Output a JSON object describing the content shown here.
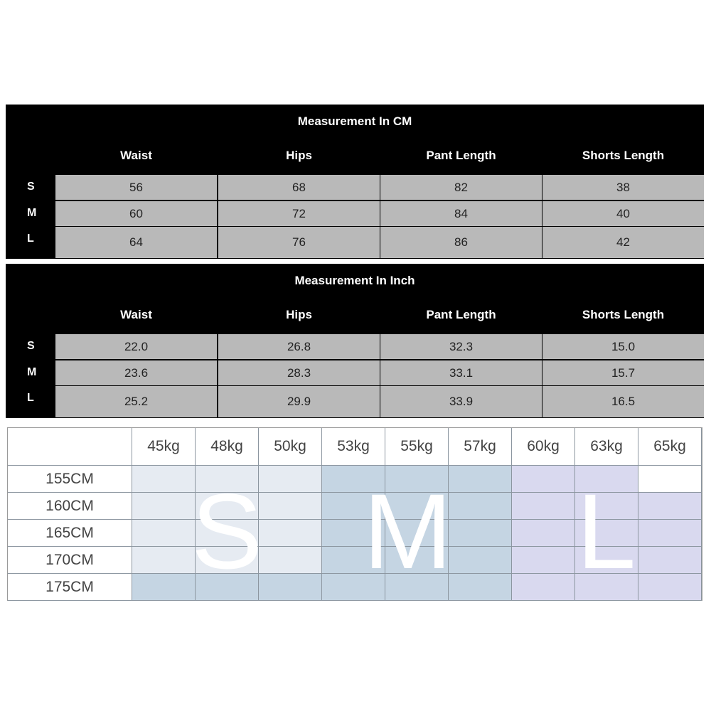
{
  "tables": [
    {
      "title": "Measurement In CM",
      "columns": [
        "Waist",
        "Hips",
        "Pant Length",
        "Shorts Length"
      ],
      "rows": [
        {
          "size": "S",
          "values": [
            "56",
            "68",
            "82",
            "38"
          ]
        },
        {
          "size": "M",
          "values": [
            "60",
            "72",
            "84",
            "40"
          ]
        },
        {
          "size": "L",
          "values": [
            "64",
            "76",
            "86",
            "42"
          ]
        }
      ]
    },
    {
      "title": "Measurement In Inch",
      "columns": [
        "Waist",
        "Hips",
        "Pant Length",
        "Shorts Length"
      ],
      "rows": [
        {
          "size": "S",
          "values": [
            "22.0",
            "26.8",
            "32.3",
            "15.0"
          ]
        },
        {
          "size": "M",
          "values": [
            "23.6",
            "28.3",
            "33.1",
            "15.7"
          ]
        },
        {
          "size": "L",
          "values": [
            "25.2",
            "29.9",
            "33.9",
            "16.5"
          ]
        }
      ]
    }
  ],
  "size_grid": {
    "weights": [
      "45kg",
      "48kg",
      "50kg",
      "53kg",
      "55kg",
      "57kg",
      "60kg",
      "63kg",
      "65kg"
    ],
    "heights": [
      "155CM",
      "160CM",
      "165CM",
      "170CM",
      "175CM"
    ],
    "cells": [
      [
        "S",
        "S",
        "S",
        "M",
        "M",
        "M",
        "L",
        "L",
        ""
      ],
      [
        "S",
        "S",
        "S",
        "M",
        "M",
        "M",
        "L",
        "L",
        "L"
      ],
      [
        "S",
        "S",
        "S",
        "M",
        "M",
        "M",
        "L",
        "L",
        "L"
      ],
      [
        "S",
        "S",
        "S",
        "M",
        "M",
        "M",
        "L",
        "L",
        "L"
      ],
      [
        "M",
        "M",
        "M",
        "M",
        "M",
        "M",
        "L",
        "L",
        "L"
      ]
    ],
    "size_labels": [
      "S",
      "M",
      "L"
    ],
    "colors": {
      "S": "#e6ebf2",
      "M": "#c5d5e3",
      "L": "#d9d9ef",
      "": "#ffffff"
    }
  }
}
